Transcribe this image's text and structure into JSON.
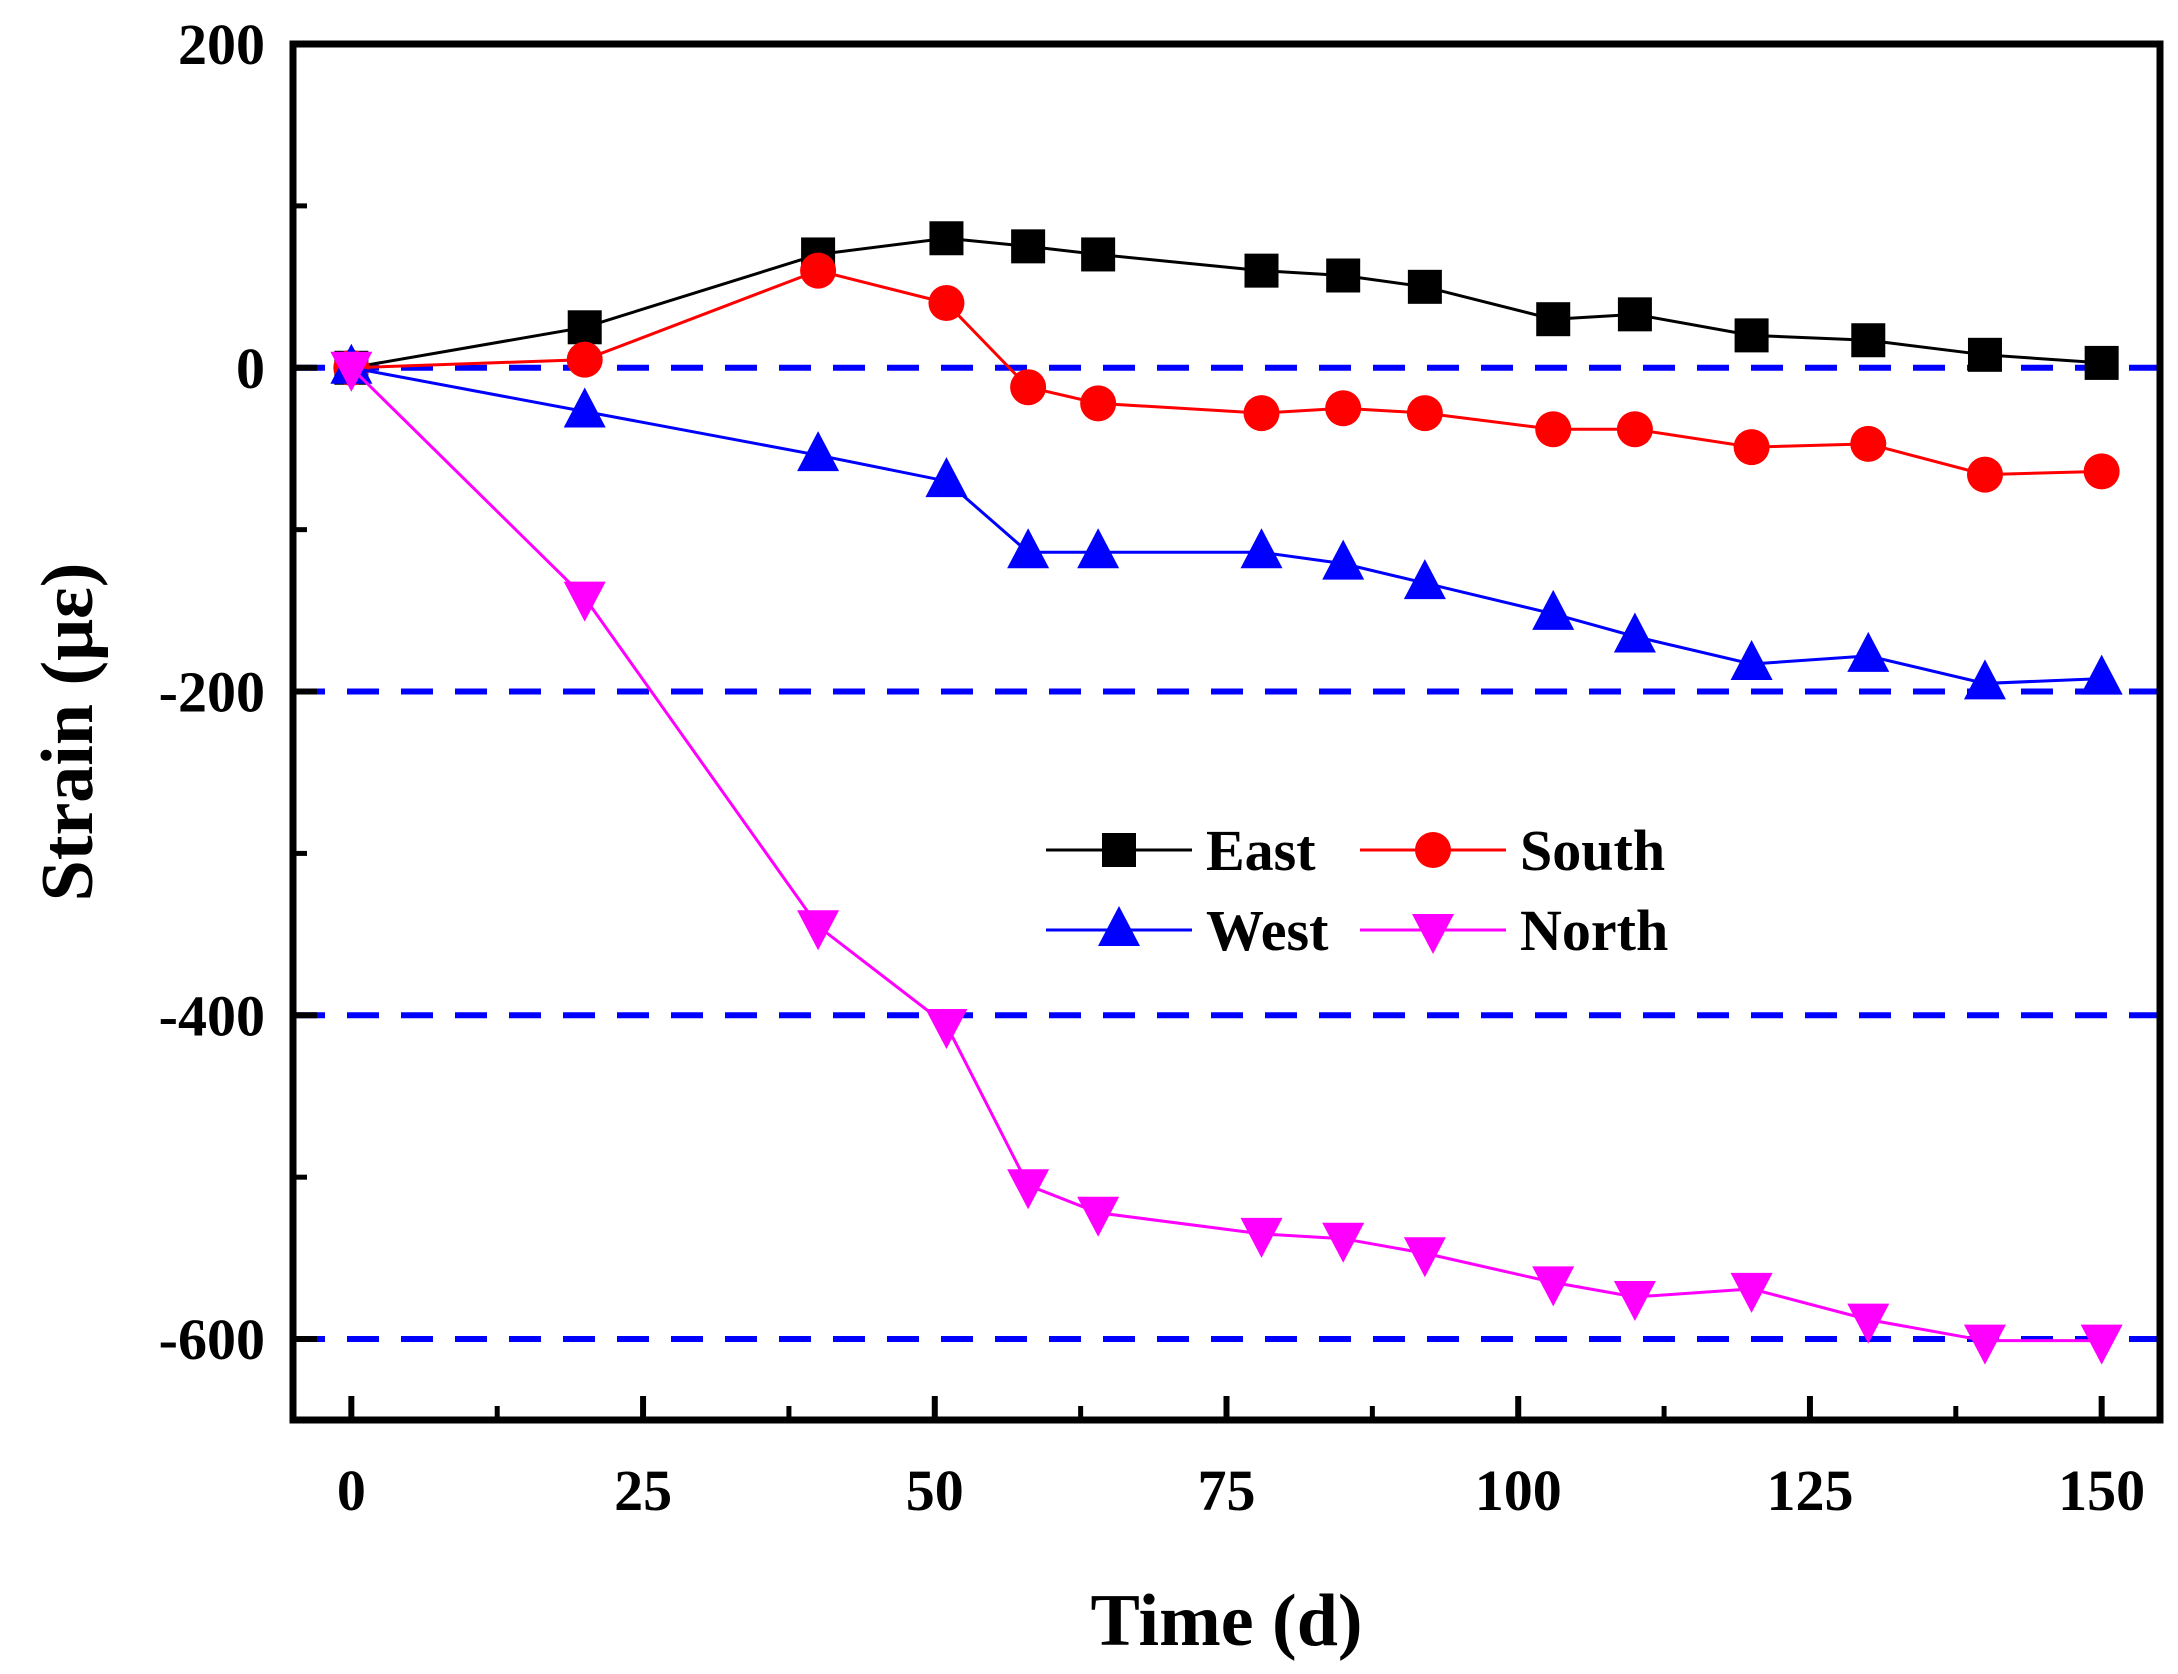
{
  "chart_data": {
    "type": "line",
    "xlabel": "Time (d)",
    "ylabel": "Strain (με)",
    "xlim": [
      -5,
      155
    ],
    "ylim": [
      -650,
      200
    ],
    "xticks": [
      0,
      25,
      50,
      75,
      100,
      125,
      150
    ],
    "xtick_labels": [
      "0",
      "25",
      "50",
      "75",
      "100",
      "125",
      "150"
    ],
    "xminor": [
      12.5,
      37.5,
      62.5,
      87.5,
      112.5,
      137.5
    ],
    "yticks": [
      200,
      0,
      -200,
      -400,
      -600
    ],
    "ytick_labels": [
      "200",
      "0",
      "-200",
      "-400",
      "-600"
    ],
    "yminor": [
      100,
      -100,
      -300,
      -500
    ],
    "reference_lines": [
      0,
      -200,
      -400,
      -600
    ],
    "reference_line_color": "#0000ff",
    "legend_position": "center-right",
    "series": [
      {
        "name": "East",
        "color": "#000000",
        "marker": "square",
        "x": [
          0,
          20,
          40,
          51,
          58,
          64,
          78,
          85,
          92,
          103,
          110,
          120,
          130,
          140,
          150
        ],
        "values": [
          0,
          25,
          70,
          80,
          75,
          70,
          60,
          57,
          50,
          30,
          33,
          20,
          17,
          8,
          3
        ]
      },
      {
        "name": "South",
        "color": "#ff0000",
        "marker": "circle",
        "x": [
          0,
          20,
          40,
          51,
          58,
          64,
          78,
          85,
          92,
          103,
          110,
          120,
          130,
          140,
          150
        ],
        "values": [
          0,
          5,
          60,
          40,
          -12,
          -22,
          -28,
          -25,
          -28,
          -38,
          -38,
          -49,
          -47,
          -66,
          -64
        ]
      },
      {
        "name": "West",
        "color": "#0000ff",
        "marker": "triangle-up",
        "x": [
          0,
          20,
          40,
          51,
          58,
          64,
          78,
          85,
          92,
          103,
          110,
          120,
          130,
          140,
          150
        ],
        "values": [
          0,
          -27,
          -54,
          -70,
          -114,
          -114,
          -114,
          -121,
          -133,
          -152,
          -166,
          -183,
          -178,
          -195,
          -192
        ]
      },
      {
        "name": "North",
        "color": "#ff00ff",
        "marker": "triangle-down",
        "x": [
          0,
          20,
          40,
          51,
          58,
          64,
          78,
          85,
          92,
          103,
          110,
          120,
          130,
          140,
          150
        ],
        "values": [
          0,
          -142,
          -345,
          -406,
          -505,
          -522,
          -535,
          -538,
          -547,
          -565,
          -574,
          -569,
          -588,
          -601,
          -601
        ]
      }
    ]
  }
}
